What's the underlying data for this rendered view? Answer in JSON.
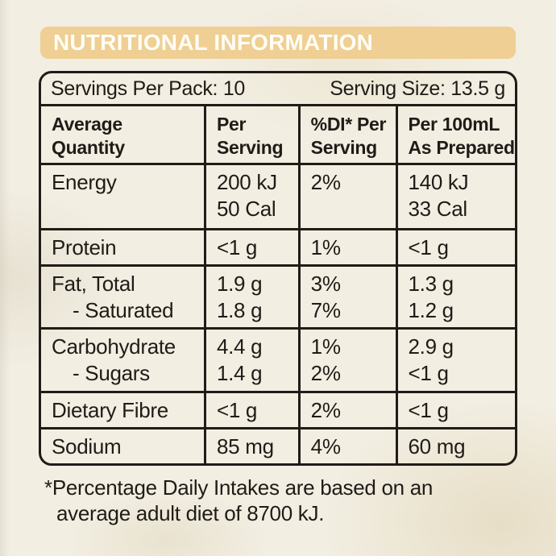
{
  "title": "NUTRITIONAL INFORMATION",
  "servings": {
    "per_pack": "Servings Per Pack: 10",
    "size": "Serving Size: 13.5 g"
  },
  "table": {
    "headers": [
      [
        "Average",
        "Quantity"
      ],
      [
        "Per",
        "Serving"
      ],
      [
        "%DI* Per",
        "Serving"
      ],
      [
        "Per 100mL",
        "As Prepared"
      ]
    ],
    "rows": [
      {
        "label": [
          "Energy"
        ],
        "per_serving": [
          "200 kJ",
          "50 Cal"
        ],
        "di": [
          "2%"
        ],
        "per_100": [
          "140 kJ",
          "33 Cal"
        ]
      },
      {
        "label": [
          "Protein"
        ],
        "per_serving": [
          "<1 g"
        ],
        "di": [
          "1%"
        ],
        "per_100": [
          "<1 g"
        ]
      },
      {
        "label": [
          "Fat, Total",
          "- Saturated"
        ],
        "per_serving": [
          "1.9 g",
          "1.8 g"
        ],
        "di": [
          "3%",
          "7%"
        ],
        "per_100": [
          "1.3 g",
          "1.2 g"
        ]
      },
      {
        "label": [
          "Carbohydrate",
          "- Sugars"
        ],
        "per_serving": [
          "4.4 g",
          "1.4 g"
        ],
        "di": [
          "1%",
          "2%"
        ],
        "per_100": [
          "2.9 g",
          "<1 g"
        ]
      },
      {
        "label": [
          "Dietary Fibre"
        ],
        "per_serving": [
          "<1 g"
        ],
        "di": [
          "2%"
        ],
        "per_100": [
          "<1 g"
        ]
      },
      {
        "label": [
          "Sodium"
        ],
        "per_serving": [
          "85 mg"
        ],
        "di": [
          "4%"
        ],
        "per_100": [
          "60 mg"
        ]
      }
    ]
  },
  "footnote": {
    "line1": "*Percentage Daily Intakes are based on an",
    "line2": "average adult diet of 8700 kJ."
  },
  "colors": {
    "banner": "#EFCF93",
    "ink": "#1F1C18",
    "paper": "#F2EEE2",
    "banner_text": "#FFFDF6"
  }
}
